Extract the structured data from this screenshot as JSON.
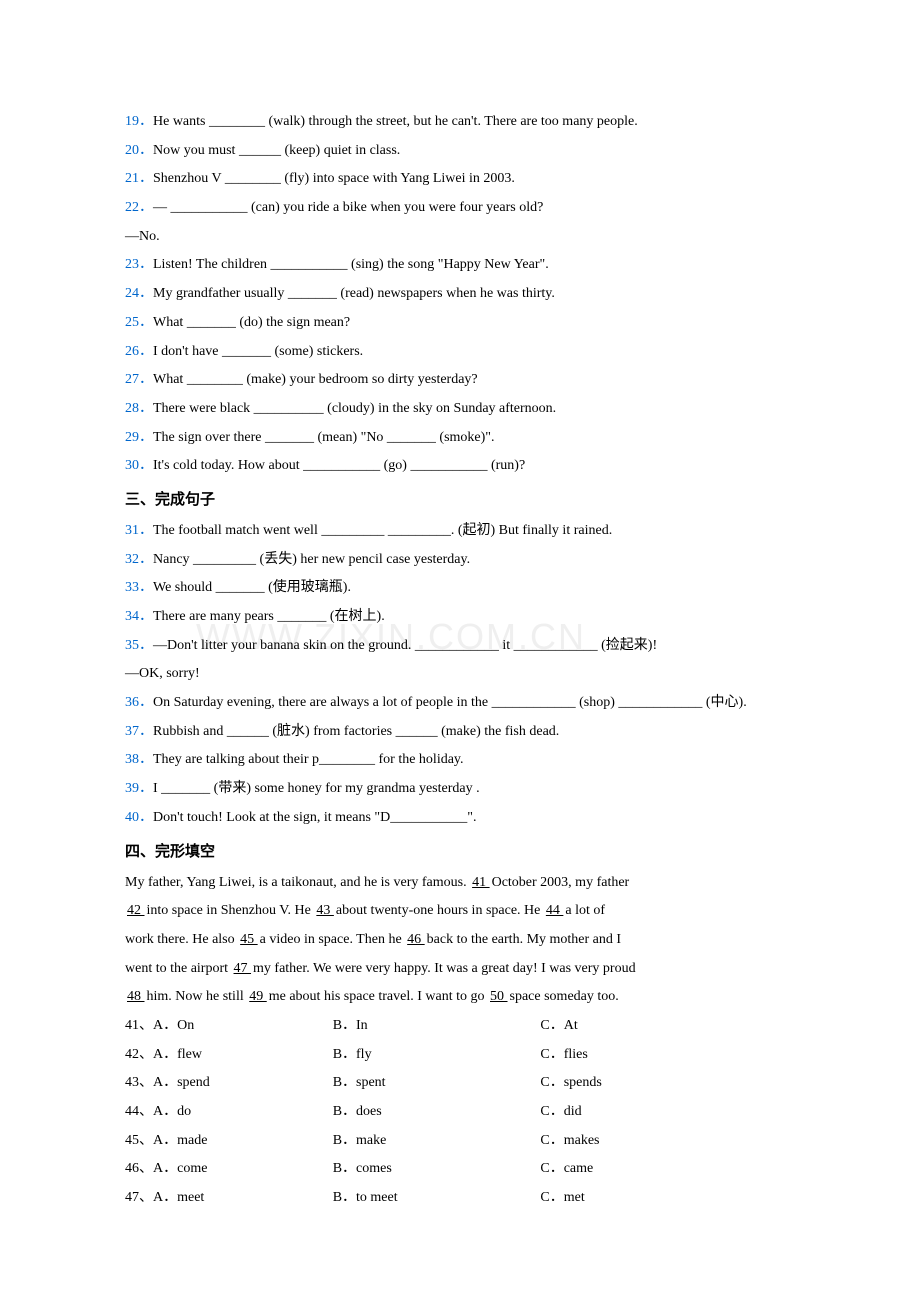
{
  "fill_blanks_2": [
    {
      "n": "19",
      "text": "He wants ________ (walk) through the street, but he can't. There are too many people."
    },
    {
      "n": "20",
      "text": "Now you must ______ (keep) quiet in class."
    },
    {
      "n": "21",
      "text": "Shenzhou V ________ (fly) into space with Yang Liwei in 2003."
    },
    {
      "n": "22",
      "text": "— ___________ (can) you ride a bike when you were four years old?"
    },
    {
      "n": "",
      "text": "—No."
    },
    {
      "n": "23",
      "text": "Listen! The children ___________ (sing) the song \"Happy New Year\"."
    },
    {
      "n": "24",
      "text": "My grandfather usually _______ (read) newspapers when he was thirty."
    },
    {
      "n": "25",
      "text": "What _______ (do) the sign mean?"
    },
    {
      "n": "26",
      "text": "I don't have _______ (some) stickers."
    },
    {
      "n": "27",
      "text": "What ________ (make) your bedroom so dirty yesterday?"
    },
    {
      "n": "28",
      "text": "There were black __________ (cloudy) in the sky on Sunday afternoon."
    },
    {
      "n": "29",
      "text": "The sign over there _______ (mean) \"No _______ (smoke)\"."
    },
    {
      "n": "30",
      "text": "It's cold today. How about ___________ (go) ___________ (run)?"
    }
  ],
  "section3_heading": "三、完成句子",
  "complete_sentences": [
    {
      "n": "31",
      "text": "The football match went well _________ _________. (起初) But finally it rained."
    },
    {
      "n": "32",
      "text": "Nancy _________ (丢失) her new pencil case yesterday."
    },
    {
      "n": "33",
      "text": "We should _______ (使用玻璃瓶)."
    },
    {
      "n": "34",
      "text": "There are many pears _______ (在树上)."
    },
    {
      "n": "35",
      "text": "—Don't litter your banana skin on the ground. ____________ it ____________ (捡起来)!"
    },
    {
      "n": "",
      "text": "—OK, sorry!"
    },
    {
      "n": "36",
      "text": "On Saturday evening, there are always a lot of people in the ____________ (shop) ____________ (中心)."
    },
    {
      "n": "37",
      "text": "Rubbish and ______ (脏水) from factories ______ (make) the fish dead."
    },
    {
      "n": "38",
      "text": "They are talking about their p________ for the holiday."
    },
    {
      "n": "39",
      "text": "I _______ (带来) some honey for my grandma yesterday ."
    },
    {
      "n": "40",
      "text": "Don't touch! Look at the sign, it means \"D___________\"."
    }
  ],
  "section4_heading": "四、完形填空",
  "cloze_passage": {
    "line1_pre": "My father, Yang Liwei, is a taikonaut, and he is very famous. ",
    "blank41": "  41  ",
    "line1_post": " October 2003, my father",
    "blank42": "  42  ",
    "line2_mid1": " into space in Shenzhou V. He ",
    "blank43": "  43  ",
    "line2_mid2": " about twenty-one hours in space. He ",
    "blank44": "  44  ",
    "line2_end": " a lot of",
    "line3_pre": "work there. He also ",
    "blank45": "  45  ",
    "line3_mid1": " a video in space. Then he ",
    "blank46": "  46  ",
    "line3_end": " back to the earth. My mother and I",
    "line4_pre": "went to the airport ",
    "blank47": "  47  ",
    "line4_end": " my father. We were very happy. It was a great day! I was very proud",
    "blank48": "  48  ",
    "line5_mid1": " him. Now he still ",
    "blank49": "  49  ",
    "line5_mid2": " me about his space travel. I want to go ",
    "blank50": "  50  ",
    "line5_end": " space someday too."
  },
  "cloze_options": [
    {
      "n": "41",
      "a": "On",
      "b": "In",
      "c": "At"
    },
    {
      "n": "42",
      "a": "flew",
      "b": "fly",
      "c": "flies"
    },
    {
      "n": "43",
      "a": "spend",
      "b": "spent",
      "c": "spends"
    },
    {
      "n": "44",
      "a": "do",
      "b": "does",
      "c": "did"
    },
    {
      "n": "45",
      "a": "made",
      "b": "make",
      "c": "makes"
    },
    {
      "n": "46",
      "a": "come",
      "b": "comes",
      "c": "came"
    },
    {
      "n": "47",
      "a": "meet",
      "b": "to meet",
      "c": "met"
    }
  ],
  "watermark_text": "WWW.ZIXIN.COM.CN"
}
